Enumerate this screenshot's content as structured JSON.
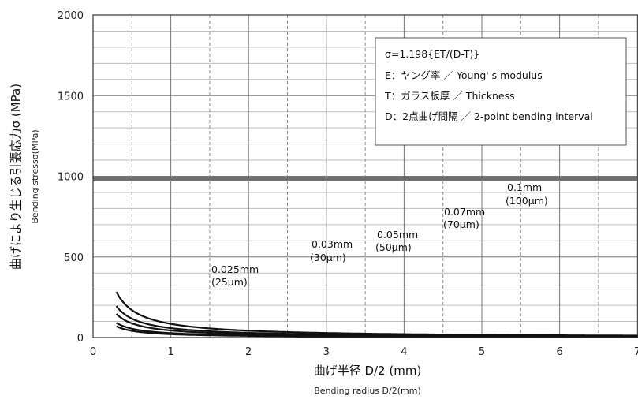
{
  "chart_data": {
    "type": "line",
    "xlabel": "曲げ半径 D/2 (mm)",
    "xlabel_en": "Bending radius D/2(mm)",
    "ylabel": "曲げにより生じる引張応力σ (MPa)",
    "ylabel_en": "Bending stressσ(MPa)",
    "xlim": [
      0,
      7
    ],
    "ylim": [
      0,
      2000
    ],
    "x_ticks": [
      0,
      1,
      2,
      3,
      4,
      5,
      6,
      7
    ],
    "y_ticks": [
      0,
      500,
      1000,
      1500,
      2000
    ],
    "grid": true,
    "reference_line": {
      "y": 1000
    },
    "formula_box": {
      "formula": "σ=1.198{ET/(D-T)}",
      "lines": [
        "E：ヤング率 ／ Young' s modulus",
        "T：ガラス板厚 ／ Thickness",
        "D：2点曲げ間隔 ／ 2-point bending interval"
      ]
    },
    "series": [
      {
        "label_mm": "0.025mm",
        "label_um": "(25μm)",
        "coef": 0.0209
      },
      {
        "label_mm": "0.03mm",
        "label_um": "(30μm)",
        "coef": 0.0275
      },
      {
        "label_mm": "0.05mm",
        "label_um": "(50μm)",
        "coef": 0.044
      },
      {
        "label_mm": "0.07mm",
        "label_um": "(70μm)",
        "coef": 0.0586
      },
      {
        "label_mm": "0.1mm",
        "label_um": "(100μm)",
        "coef": 0.085
      }
    ]
  }
}
